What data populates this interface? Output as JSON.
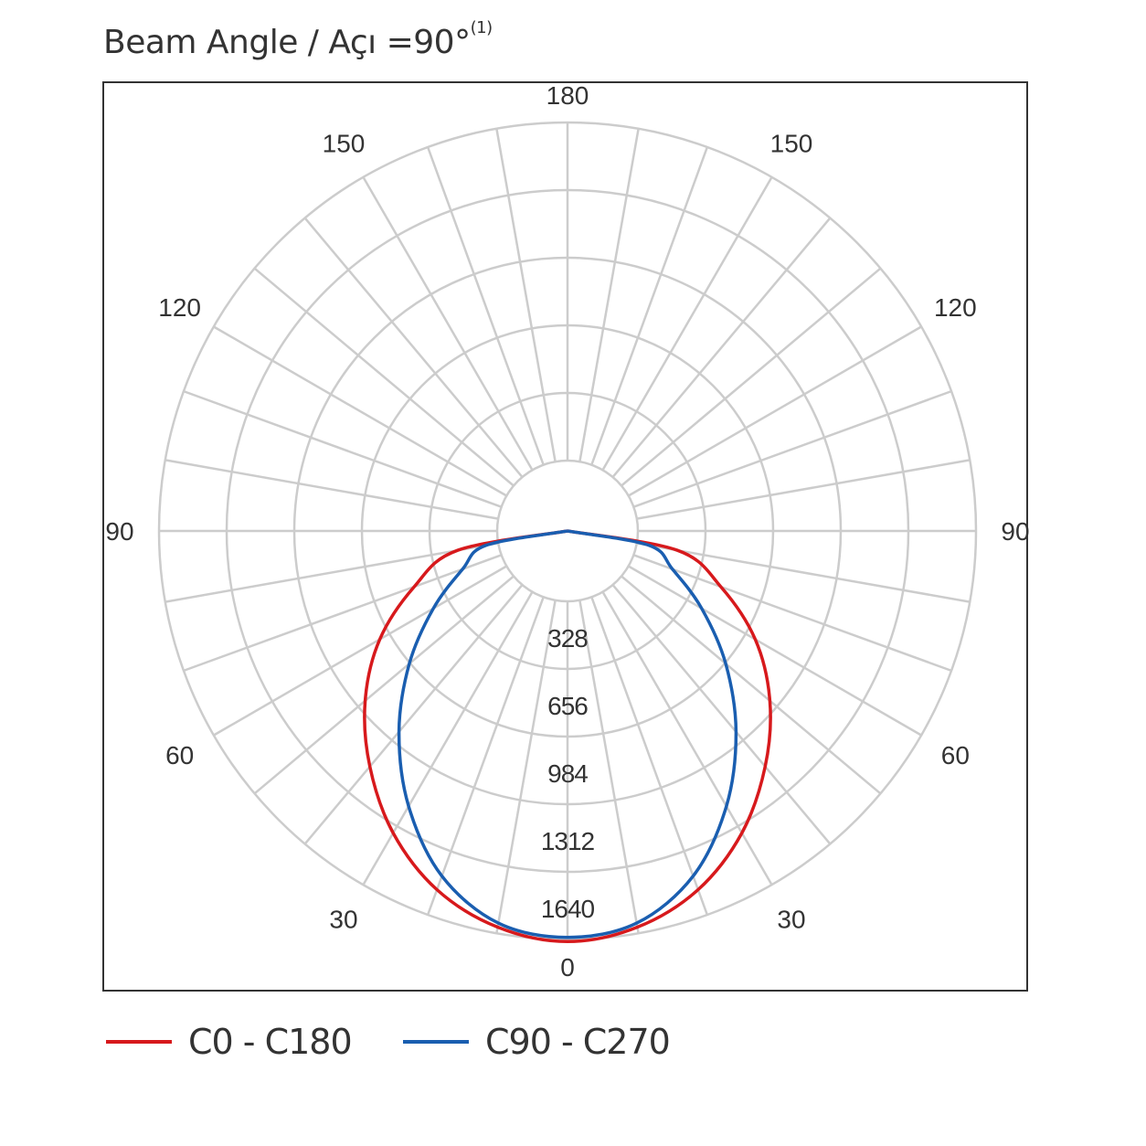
{
  "title": {
    "text": "Beam Angle / Açı =90°",
    "superscript": "(1)"
  },
  "chart_data": {
    "type": "polar",
    "angle_labels_right": [
      "0",
      "30",
      "60",
      "90",
      "120",
      "150",
      "180"
    ],
    "angle_labels_left": [
      "30",
      "60",
      "90",
      "120",
      "150"
    ],
    "radial_ticks": [
      328,
      656,
      984,
      1312,
      1640
    ],
    "radial_tick_labels": [
      "328",
      "656",
      "984",
      "1312",
      "1640"
    ],
    "r_max": 1640,
    "grid": true,
    "grid_color": "#cccccc",
    "legend_position": "bottom",
    "series": [
      {
        "name": "C0 - C180",
        "color": "#d7191c",
        "angles": [
          0,
          10,
          20,
          30,
          40,
          50,
          60,
          70,
          80,
          90
        ],
        "values": [
          1650,
          1610,
          1510,
          1350,
          1150,
          940,
          710,
          450,
          200,
          0
        ]
      },
      {
        "name": "C90 - C270",
        "color": "#1a5eb0",
        "angles": [
          0,
          10,
          20,
          30,
          40,
          50,
          60,
          70,
          80,
          90
        ],
        "values": [
          1630,
          1590,
          1440,
          1200,
          930,
          660,
          410,
          200,
          60,
          0
        ]
      }
    ]
  }
}
